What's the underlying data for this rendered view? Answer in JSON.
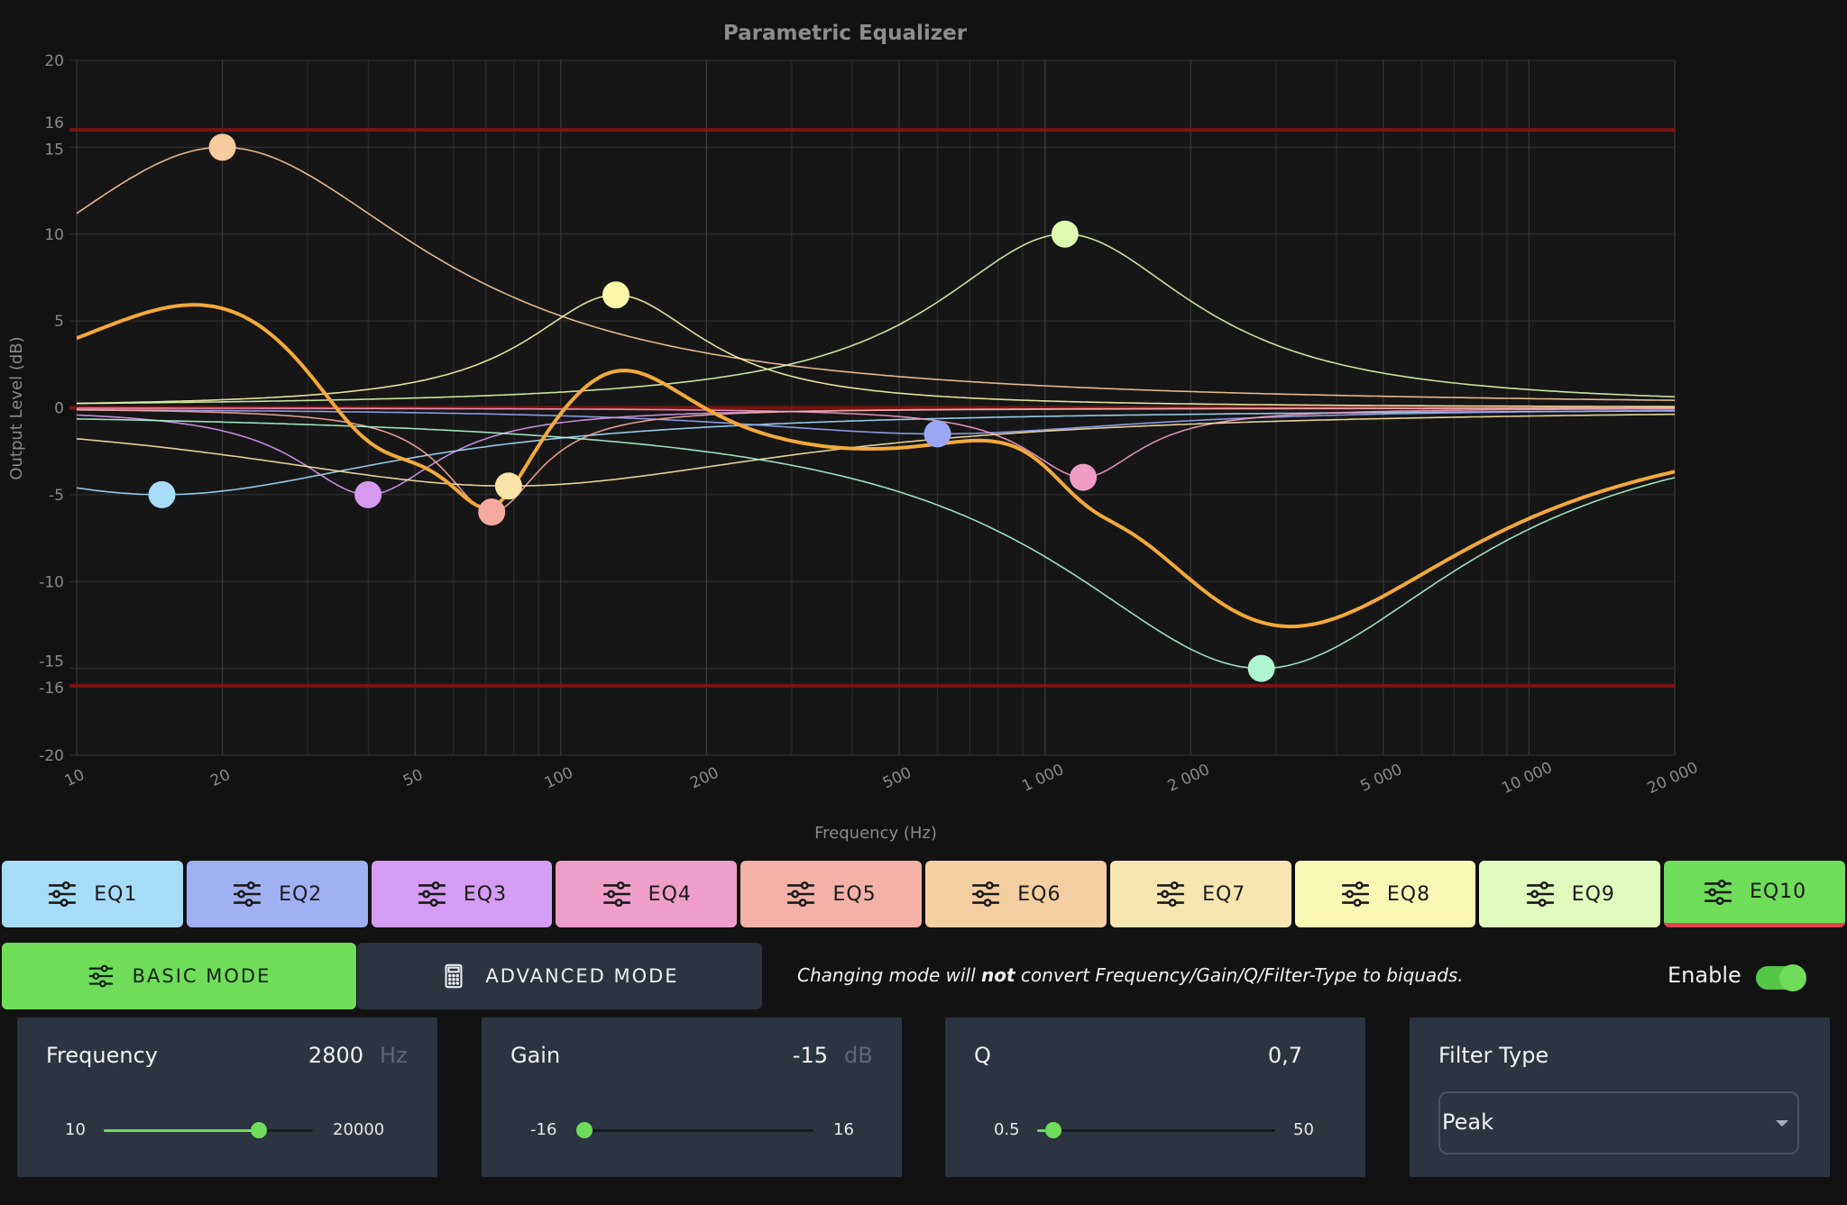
{
  "chart_data": {
    "type": "line",
    "title": "Parametric Equalizer",
    "xlabel": "Frequency (Hz)",
    "ylabel": "Output Level (dB)",
    "x_scale": "log",
    "xlim": [
      10,
      20000
    ],
    "ylim": [
      -20,
      20
    ],
    "x_ticks": [
      10,
      20,
      50,
      100,
      200,
      500,
      1000,
      2000,
      5000,
      10000,
      20000
    ],
    "x_tick_labels": [
      "10",
      "20",
      "50",
      "100",
      "200",
      "500",
      "1 000",
      "2 000",
      "5 000",
      "10 000",
      "20 000"
    ],
    "y_ticks": [
      -20,
      -16,
      -15,
      -10,
      -5,
      0,
      5,
      10,
      15,
      16,
      20
    ],
    "y_tick_labels": [
      "-20",
      "-16",
      "-15",
      "-10",
      "-5",
      "0",
      "5",
      "10",
      "15",
      "16",
      "20"
    ],
    "limit_lines": [
      16,
      0,
      -16
    ],
    "limit_color": "#7a1414",
    "grid": true,
    "combined_color": "#f3a93a",
    "bands": [
      {
        "name": "EQ1",
        "freq": 15,
        "gain": -5,
        "q": 0.6,
        "type": "lowshelf-ish",
        "color": "#a6dcf8"
      },
      {
        "name": "EQ2",
        "freq": 600,
        "gain": -1.5,
        "q": 0.7,
        "color": "#9aa8f4"
      },
      {
        "name": "EQ3",
        "freq": 40,
        "gain": -5,
        "q": 2.0,
        "color": "#d59af0"
      },
      {
        "name": "EQ4",
        "freq": 1200,
        "gain": -4,
        "q": 2.5,
        "color": "#f09cc6"
      },
      {
        "name": "EQ5",
        "freq": 72,
        "gain": -6,
        "q": 3.0,
        "color": "#f5aaa0"
      },
      {
        "name": "EQ6",
        "freq": 20,
        "gain": 15,
        "q": 0.7,
        "color": "#f6cb9d"
      },
      {
        "name": "EQ7",
        "freq": 78,
        "gain": -4.5,
        "q": 0.5,
        "color": "#f8e4a8"
      },
      {
        "name": "EQ8",
        "freq": 130,
        "gain": 6.5,
        "q": 1.6,
        "color": "#fbf6a8"
      },
      {
        "name": "EQ9",
        "freq": 1100,
        "gain": 10,
        "q": 1.1,
        "color": "#dcfab0"
      },
      {
        "name": "EQ10",
        "freq": 2800,
        "gain": -15,
        "q": 0.7,
        "color": "#aef5cf"
      }
    ]
  },
  "tabs": [
    {
      "label": "EQ1",
      "color": "#a6dcf8"
    },
    {
      "label": "EQ2",
      "color": "#9fb0f3"
    },
    {
      "label": "EQ3",
      "color": "#d49cf2"
    },
    {
      "label": "EQ4",
      "color": "#ef9ec9"
    },
    {
      "label": "EQ5",
      "color": "#f3b1a7"
    },
    {
      "label": "EQ6",
      "color": "#f5cfa2"
    },
    {
      "label": "EQ7",
      "color": "#f8e6b2"
    },
    {
      "label": "EQ8",
      "color": "#fbf8b6"
    },
    {
      "label": "EQ9",
      "color": "#dffbbd"
    },
    {
      "label": "EQ10",
      "color": "#6fdc5a",
      "active": true
    }
  ],
  "modes": {
    "basic": "BASIC MODE",
    "advanced": "ADVANCED MODE",
    "note_pre": "Changing mode will ",
    "note_bold": "not",
    "note_post": " convert Frequency/Gain/Q/Filter-Type to biquads."
  },
  "enable": {
    "label": "Enable",
    "on": true
  },
  "params": {
    "frequency": {
      "label": "Frequency",
      "value": "2800",
      "unit": "Hz",
      "min": "10",
      "max": "20000",
      "fraction": 0.74
    },
    "gain": {
      "label": "Gain",
      "value": "-15",
      "unit": "dB",
      "min": "-16",
      "max": "16",
      "fraction": 0.03
    },
    "q": {
      "label": "Q",
      "value": "0,7",
      "min": "0.5",
      "max": "50",
      "fraction": 0.07
    },
    "filter_type": {
      "label": "Filter Type",
      "value": "Peak"
    }
  }
}
